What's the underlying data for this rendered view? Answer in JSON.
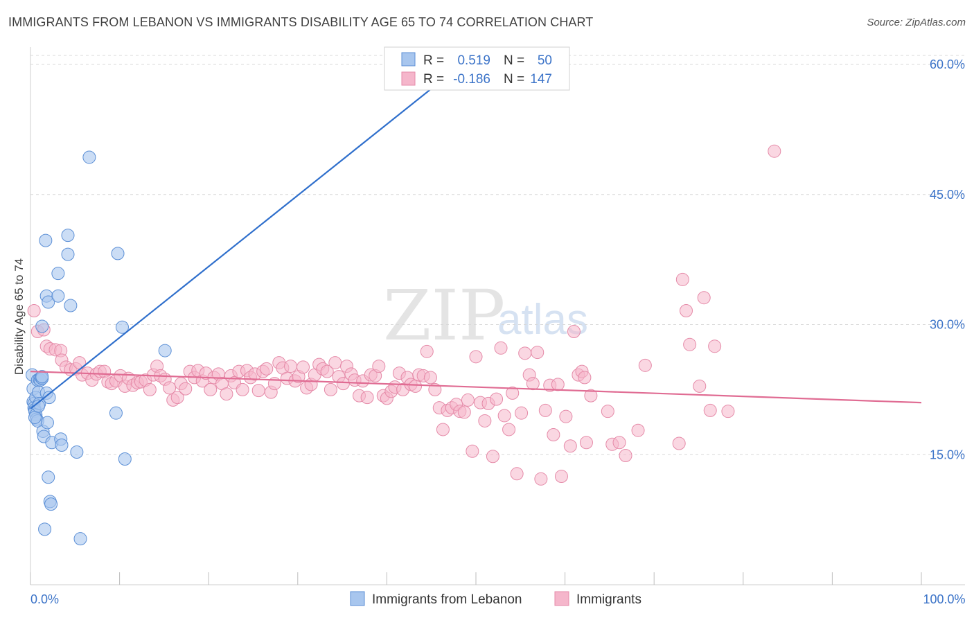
{
  "header": {
    "title": "IMMIGRANTS FROM LEBANON VS IMMIGRANTS DISABILITY AGE 65 TO 74 CORRELATION CHART",
    "source": "Source: ZipAtlas.com"
  },
  "watermark": {
    "zip": "ZIP",
    "atlas": "atlas"
  },
  "stats": [
    {
      "r_label": "R =",
      "r_value": "0.519",
      "n_label": "N =",
      "n_value": "50"
    },
    {
      "r_label": "R =",
      "r_value": "-0.186",
      "n_label": "N =",
      "n_value": "147"
    }
  ],
  "colors": {
    "blue_fill": "#a8c6ee",
    "blue_stroke": "#5b8fd6",
    "blue_line": "#2f6fcc",
    "pink_fill": "#f5b6cb",
    "pink_stroke": "#e58aa8",
    "pink_line": "#e06c93",
    "grid": "#d8d8d8",
    "tick_text": "#3b73c8"
  },
  "chart_data": {
    "type": "scatter",
    "title": "IMMIGRANTS FROM LEBANON VS IMMIGRANTS DISABILITY AGE 65 TO 74 CORRELATION CHART",
    "xlabel": "",
    "ylabel": "Disability Age 65 to 74",
    "xlim": [
      0,
      100
    ],
    "ylim": [
      0,
      62
    ],
    "x_tick_labels": [
      {
        "value": 0,
        "label": "0.0%"
      },
      {
        "value": 100,
        "label": "100.0%"
      }
    ],
    "y_tick_labels": [
      {
        "value": 15,
        "label": "15.0%"
      },
      {
        "value": 30,
        "label": "30.0%"
      },
      {
        "value": 45,
        "label": "45.0%"
      },
      {
        "value": 60,
        "label": "60.0%"
      }
    ],
    "grid": true,
    "legend_position": "bottom-center",
    "series": [
      {
        "name": "Immigrants from Lebanon",
        "color": "#a8c6ee",
        "trend": {
          "x": [
            0,
            47.8
          ],
          "y": [
            20.3,
            59.5
          ]
        },
        "points": [
          [
            0.2,
            24.2
          ],
          [
            0.3,
            22.6
          ],
          [
            0.3,
            21.1
          ],
          [
            0.4,
            20.9
          ],
          [
            0.4,
            20.4
          ],
          [
            0.5,
            20.2
          ],
          [
            0.5,
            20.0
          ],
          [
            0.6,
            19.6
          ],
          [
            0.6,
            21.6
          ],
          [
            0.7,
            19.1
          ],
          [
            0.8,
            18.9
          ],
          [
            0.8,
            23.6
          ],
          [
            0.9,
            22.2
          ],
          [
            1.0,
            23.7
          ],
          [
            1.0,
            20.9
          ],
          [
            1.1,
            23.6
          ],
          [
            1.2,
            23.9
          ],
          [
            1.3,
            23.8
          ],
          [
            1.3,
            29.8
          ],
          [
            1.4,
            17.7
          ],
          [
            1.5,
            17.1
          ],
          [
            1.7,
            39.7
          ],
          [
            1.8,
            33.3
          ],
          [
            1.8,
            22.1
          ],
          [
            1.9,
            18.7
          ],
          [
            2.0,
            32.6
          ],
          [
            2.0,
            12.4
          ],
          [
            2.1,
            21.6
          ],
          [
            2.2,
            9.6
          ],
          [
            2.3,
            9.3
          ],
          [
            2.4,
            16.4
          ],
          [
            3.1,
            35.9
          ],
          [
            3.1,
            33.3
          ],
          [
            3.4,
            16.8
          ],
          [
            3.5,
            16.1
          ],
          [
            4.2,
            40.3
          ],
          [
            4.2,
            38.1
          ],
          [
            4.5,
            32.2
          ],
          [
            5.2,
            15.3
          ],
          [
            5.6,
            5.3
          ],
          [
            6.6,
            49.3
          ],
          [
            9.6,
            19.8
          ],
          [
            9.8,
            38.2
          ],
          [
            10.3,
            29.7
          ],
          [
            10.6,
            14.5
          ],
          [
            15.1,
            27.0
          ],
          [
            1.6,
            6.4
          ],
          [
            0.5,
            19.3
          ],
          [
            0.9,
            20.6
          ],
          [
            1.3,
            24.0
          ]
        ]
      },
      {
        "name": "Immigrants",
        "color": "#f5b6cb",
        "trend": {
          "x": [
            0,
            100
          ],
          "y": [
            24.6,
            21.0
          ]
        },
        "points": [
          [
            0.4,
            31.6
          ],
          [
            0.8,
            29.2
          ],
          [
            1.5,
            29.4
          ],
          [
            1.8,
            27.5
          ],
          [
            2.2,
            27.2
          ],
          [
            2.8,
            27.1
          ],
          [
            3.4,
            27.0
          ],
          [
            3.5,
            25.9
          ],
          [
            4.0,
            25.1
          ],
          [
            4.5,
            24.8
          ],
          [
            5.1,
            24.9
          ],
          [
            5.5,
            25.6
          ],
          [
            5.8,
            24.2
          ],
          [
            6.4,
            24.4
          ],
          [
            6.9,
            23.6
          ],
          [
            7.4,
            24.3
          ],
          [
            7.8,
            24.6
          ],
          [
            8.3,
            24.6
          ],
          [
            8.7,
            23.4
          ],
          [
            9.1,
            23.2
          ],
          [
            9.6,
            23.5
          ],
          [
            10.1,
            24.1
          ],
          [
            10.6,
            22.9
          ],
          [
            11.0,
            23.8
          ],
          [
            11.5,
            23.0
          ],
          [
            12.0,
            23.3
          ],
          [
            12.4,
            23.4
          ],
          [
            12.9,
            23.6
          ],
          [
            13.4,
            22.5
          ],
          [
            13.8,
            24.2
          ],
          [
            14.2,
            25.2
          ],
          [
            14.6,
            24.1
          ],
          [
            15.1,
            23.7
          ],
          [
            15.6,
            22.7
          ],
          [
            16.0,
            21.3
          ],
          [
            16.5,
            21.6
          ],
          [
            16.9,
            23.2
          ],
          [
            17.4,
            22.6
          ],
          [
            17.9,
            24.6
          ],
          [
            18.4,
            23.9
          ],
          [
            18.8,
            24.7
          ],
          [
            19.3,
            23.5
          ],
          [
            19.7,
            24.4
          ],
          [
            20.2,
            22.5
          ],
          [
            20.6,
            23.9
          ],
          [
            21.1,
            24.3
          ],
          [
            21.5,
            23.2
          ],
          [
            22.0,
            22.0
          ],
          [
            22.5,
            24.1
          ],
          [
            22.9,
            23.3
          ],
          [
            23.4,
            24.6
          ],
          [
            23.8,
            22.5
          ],
          [
            24.3,
            24.7
          ],
          [
            24.7,
            23.9
          ],
          [
            25.2,
            24.3
          ],
          [
            25.6,
            22.4
          ],
          [
            26.1,
            24.6
          ],
          [
            26.5,
            24.9
          ],
          [
            27.0,
            22.2
          ],
          [
            27.4,
            23.2
          ],
          [
            27.9,
            25.6
          ],
          [
            28.3,
            25.0
          ],
          [
            28.8,
            23.8
          ],
          [
            29.2,
            25.2
          ],
          [
            29.7,
            23.5
          ],
          [
            30.1,
            24.0
          ],
          [
            30.6,
            25.1
          ],
          [
            31.0,
            22.7
          ],
          [
            31.5,
            23.1
          ],
          [
            31.9,
            24.2
          ],
          [
            32.4,
            25.4
          ],
          [
            32.8,
            24.9
          ],
          [
            33.3,
            24.6
          ],
          [
            33.7,
            22.5
          ],
          [
            34.2,
            25.6
          ],
          [
            34.6,
            24.0
          ],
          [
            35.1,
            23.2
          ],
          [
            35.5,
            25.2
          ],
          [
            36.0,
            24.3
          ],
          [
            36.4,
            23.6
          ],
          [
            36.9,
            21.8
          ],
          [
            37.3,
            23.5
          ],
          [
            37.8,
            21.6
          ],
          [
            38.2,
            24.2
          ],
          [
            38.7,
            24.1
          ],
          [
            39.1,
            25.2
          ],
          [
            39.6,
            21.8
          ],
          [
            40.0,
            21.5
          ],
          [
            40.5,
            22.3
          ],
          [
            40.9,
            22.8
          ],
          [
            41.4,
            24.4
          ],
          [
            41.8,
            22.5
          ],
          [
            42.3,
            23.9
          ],
          [
            42.7,
            23.1
          ],
          [
            43.2,
            22.9
          ],
          [
            43.6,
            24.2
          ],
          [
            44.1,
            24.1
          ],
          [
            44.5,
            26.9
          ],
          [
            44.9,
            23.9
          ],
          [
            45.4,
            22.5
          ],
          [
            45.9,
            20.4
          ],
          [
            46.3,
            17.9
          ],
          [
            46.8,
            20.1
          ],
          [
            47.3,
            20.4
          ],
          [
            47.8,
            20.8
          ],
          [
            48.2,
            20.0
          ],
          [
            48.7,
            19.9
          ],
          [
            49.1,
            21.3
          ],
          [
            49.6,
            15.4
          ],
          [
            50.0,
            26.3
          ],
          [
            50.5,
            21.0
          ],
          [
            51.0,
            18.9
          ],
          [
            51.4,
            20.9
          ],
          [
            51.9,
            14.8
          ],
          [
            52.3,
            21.4
          ],
          [
            52.8,
            27.3
          ],
          [
            53.2,
            19.5
          ],
          [
            53.7,
            17.9
          ],
          [
            54.1,
            22.1
          ],
          [
            54.6,
            12.8
          ],
          [
            55.1,
            19.8
          ],
          [
            55.5,
            26.7
          ],
          [
            56.0,
            24.2
          ],
          [
            56.4,
            23.2
          ],
          [
            56.9,
            26.8
          ],
          [
            57.3,
            12.2
          ],
          [
            57.8,
            20.1
          ],
          [
            58.3,
            23.0
          ],
          [
            58.7,
            17.3
          ],
          [
            59.2,
            23.1
          ],
          [
            59.6,
            12.5
          ],
          [
            60.1,
            19.4
          ],
          [
            60.6,
            16.0
          ],
          [
            61.0,
            29.2
          ],
          [
            61.5,
            24.2
          ],
          [
            61.9,
            24.6
          ],
          [
            62.4,
            16.4
          ],
          [
            62.9,
            21.8
          ],
          [
            64.8,
            20.0
          ],
          [
            65.3,
            16.2
          ],
          [
            66.1,
            16.4
          ],
          [
            66.8,
            14.9
          ],
          [
            68.2,
            17.8
          ],
          [
            69.0,
            25.3
          ],
          [
            73.2,
            35.2
          ],
          [
            73.6,
            31.6
          ],
          [
            75.6,
            33.1
          ],
          [
            74.0,
            27.7
          ],
          [
            76.8,
            27.5
          ],
          [
            75.1,
            22.9
          ],
          [
            78.3,
            20.0
          ],
          [
            83.5,
            50.0
          ],
          [
            72.8,
            16.3
          ],
          [
            76.3,
            20.1
          ],
          [
            62.2,
            23.9
          ]
        ]
      }
    ]
  },
  "legend": {
    "items": [
      {
        "label": "Immigrants from Lebanon"
      },
      {
        "label": "Immigrants"
      }
    ]
  }
}
